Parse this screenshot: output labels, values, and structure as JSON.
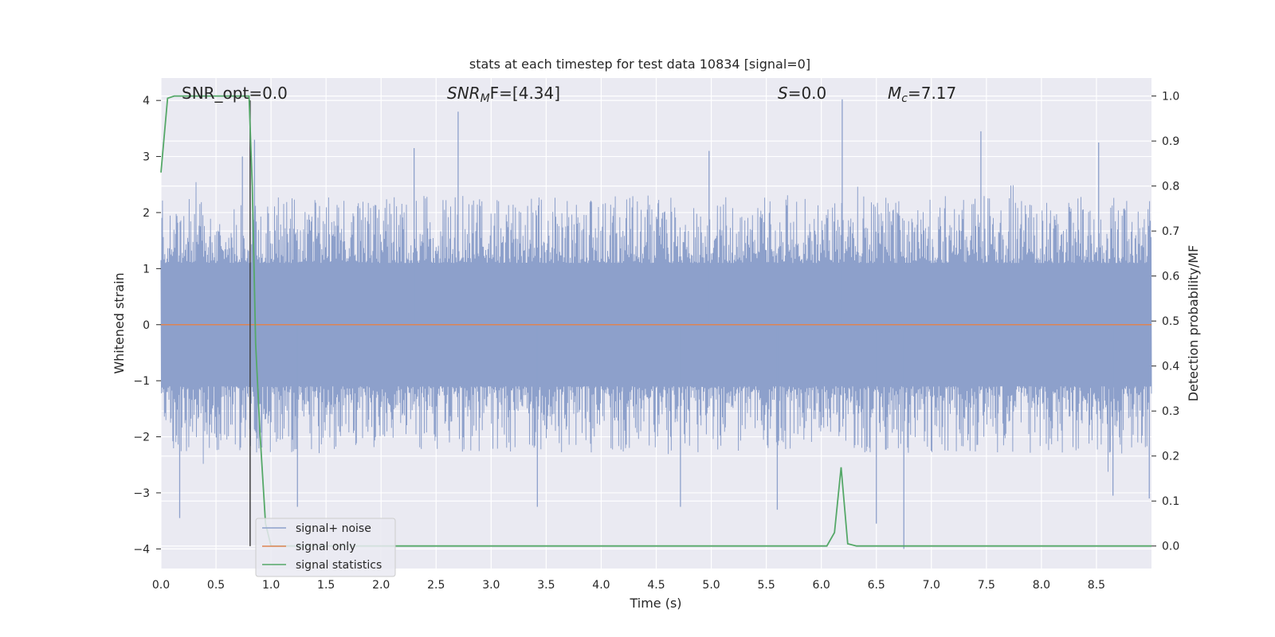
{
  "chart_data": {
    "type": "line",
    "title": "stats at each timestep for test data 10834 [signal=0]",
    "xlabel": "Time (s)",
    "ylabel": "Whitened strain",
    "ylabel_right": "Detection probability/MF",
    "xlim": [
      0.0,
      9.0
    ],
    "ylim": [
      -4.35,
      4.4
    ],
    "ylim_right": [
      -0.05,
      1.04
    ],
    "xticks": [
      "0.0",
      "0.5",
      "1.0",
      "1.5",
      "2.0",
      "2.5",
      "3.0",
      "3.5",
      "4.0",
      "4.5",
      "5.0",
      "5.5",
      "6.0",
      "6.5",
      "7.0",
      "7.5",
      "8.0",
      "8.5"
    ],
    "yticks": [
      "4",
      "3",
      "2",
      "1",
      "0",
      "−1",
      "−2",
      "−3",
      "−4"
    ],
    "yticks_right": [
      "1.0",
      "0.9",
      "0.8",
      "0.7",
      "0.6",
      "0.5",
      "0.4",
      "0.3",
      "0.2",
      "0.1",
      "0.0"
    ],
    "grid": true,
    "annotations": {
      "snr_opt": "SNR_opt=0.0",
      "snr_mf_main": "SNR",
      "snr_mf_sub": "M",
      "snr_mf_rest": "F=[4.34]",
      "s_main": "S",
      "s_rest": "=0.0",
      "mc_main": "M",
      "mc_sub": "c",
      "mc_rest": "=7.17"
    },
    "vertical_marker": {
      "x": 0.81,
      "y_range": [
        -3.95,
        4.0
      ]
    },
    "series": [
      {
        "name": "signal+ noise",
        "color": "#8da0cb",
        "kind": "noise",
        "band": 0.8,
        "typical_peak_range": [
          -2.3,
          2.3
        ],
        "spikes": [
          {
            "x": 0.17,
            "y": -3.45
          },
          {
            "x": 0.74,
            "y": 3.0
          },
          {
            "x": 0.85,
            "y": 3.3
          },
          {
            "x": 1.24,
            "y": -3.25
          },
          {
            "x": 2.3,
            "y": 3.15
          },
          {
            "x": 2.7,
            "y": 3.8
          },
          {
            "x": 3.42,
            "y": -3.25
          },
          {
            "x": 4.72,
            "y": -3.25
          },
          {
            "x": 4.98,
            "y": 3.1
          },
          {
            "x": 5.6,
            "y": -3.3
          },
          {
            "x": 6.19,
            "y": 4.02
          },
          {
            "x": 6.75,
            "y": -4.0
          },
          {
            "x": 6.5,
            "y": -3.55
          },
          {
            "x": 7.45,
            "y": 3.45
          },
          {
            "x": 8.52,
            "y": 3.25
          },
          {
            "x": 8.65,
            "y": -3.05
          },
          {
            "x": 8.98,
            "y": -3.1
          }
        ]
      },
      {
        "name": "signal only",
        "color": "#dd8452",
        "x": [
          0.0,
          9.0
        ],
        "y": [
          0.0,
          0.0
        ]
      },
      {
        "name": "signal statistics",
        "color": "#55a868",
        "axis": "right",
        "x": [
          0.0,
          0.06,
          0.12,
          0.5,
          0.75,
          0.8,
          0.83,
          0.86,
          0.9,
          0.95,
          1.0,
          5.6,
          6.05,
          6.12,
          6.18,
          6.24,
          6.32,
          9.0
        ],
        "y": [
          0.83,
          0.995,
          1.0,
          1.0,
          1.0,
          1.0,
          0.8,
          0.45,
          0.25,
          0.05,
          0.0,
          0.0,
          0.0,
          0.03,
          0.175,
          0.005,
          0.0,
          0.0
        ]
      }
    ],
    "legend": {
      "position": "lower-left",
      "entries": [
        "signal+ noise",
        "signal only",
        "signal statistics"
      ]
    }
  }
}
